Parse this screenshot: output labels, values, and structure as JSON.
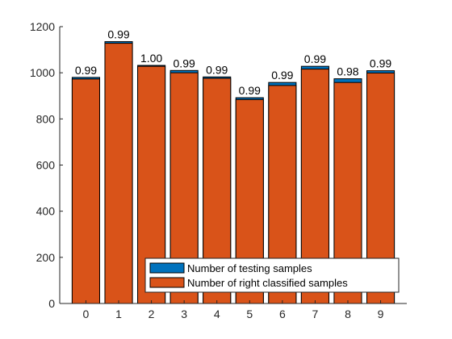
{
  "chart_data": {
    "type": "bar",
    "categories": [
      "0",
      "1",
      "2",
      "3",
      "4",
      "5",
      "6",
      "7",
      "8",
      "9"
    ],
    "series": [
      {
        "name": "Number of testing samples",
        "color": "#0072BD",
        "values": [
          980,
          1135,
          1032,
          1010,
          982,
          892,
          958,
          1028,
          974,
          1009
        ]
      },
      {
        "name": "Number of right classified samples",
        "color": "#D95319",
        "values": [
          973,
          1128,
          1028,
          1000,
          976,
          884,
          945,
          1016,
          958,
          999
        ]
      }
    ],
    "data_labels": [
      "0.99",
      "0.99",
      "1.00",
      "0.99",
      "0.99",
      "0.99",
      "0.99",
      "0.99",
      "0.98",
      "0.99"
    ],
    "ylim": [
      0,
      1200
    ],
    "yticks": [
      0,
      200,
      400,
      600,
      800,
      1000,
      1200
    ],
    "grid": false,
    "legend_position": "bottom-right",
    "title": "",
    "xlabel": "",
    "ylabel": ""
  }
}
